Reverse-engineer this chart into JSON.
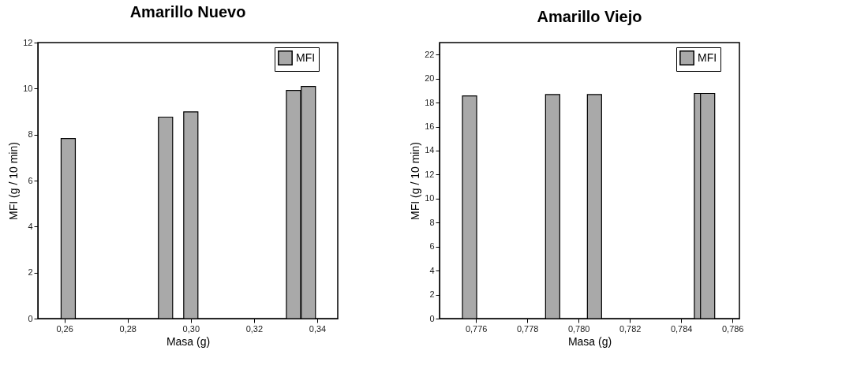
{
  "chart_data": [
    {
      "type": "bar",
      "title": "Amarillo Nuevo",
      "xlabel": "Masa (g)",
      "ylabel": "MFI (g / 10 min)",
      "x": [
        0.2612,
        0.292,
        0.3,
        0.3325,
        0.3372
      ],
      "series": [
        {
          "name": "MFI",
          "color": "#a9a9a9",
          "values": [
            7.83,
            8.76,
            8.99,
            9.92,
            10.09
          ]
        }
      ],
      "xlim": [
        0.2516,
        0.3465
      ],
      "xticks": [
        {
          "value": 0.26,
          "label": "0,26"
        },
        {
          "value": 0.28,
          "label": "0,28"
        },
        {
          "value": 0.3,
          "label": "0,30"
        },
        {
          "value": 0.32,
          "label": "0,32"
        },
        {
          "value": 0.34,
          "label": "0,34"
        }
      ],
      "ylim": [
        0,
        12
      ],
      "yticks": [
        0,
        2,
        4,
        6,
        8,
        10,
        12
      ],
      "legend": "top right",
      "grid": false
    },
    {
      "type": "bar",
      "title": "Amarillo Viejo",
      "xlabel": "Masa (g)",
      "ylabel": "MFI (g / 10 min)",
      "x": [
        0.77575,
        0.77899,
        0.78062,
        0.78479,
        0.78503
      ],
      "series": [
        {
          "name": "MFI",
          "color": "#a9a9a9",
          "values": [
            18.56,
            18.67,
            18.67,
            18.76,
            18.76
          ]
        }
      ],
      "xlim": [
        0.77458,
        0.78627
      ],
      "xticks": [
        {
          "value": 0.776,
          "label": "0,776"
        },
        {
          "value": 0.778,
          "label": "0,778"
        },
        {
          "value": 0.78,
          "label": "0,780"
        },
        {
          "value": 0.782,
          "label": "0,782"
        },
        {
          "value": 0.784,
          "label": "0,784"
        },
        {
          "value": 0.786,
          "label": "0,786"
        }
      ],
      "ylim": [
        0,
        23
      ],
      "yticks": [
        0,
        2,
        4,
        6,
        8,
        10,
        12,
        14,
        16,
        18,
        20,
        22
      ],
      "legend": "top right",
      "grid": false
    }
  ]
}
